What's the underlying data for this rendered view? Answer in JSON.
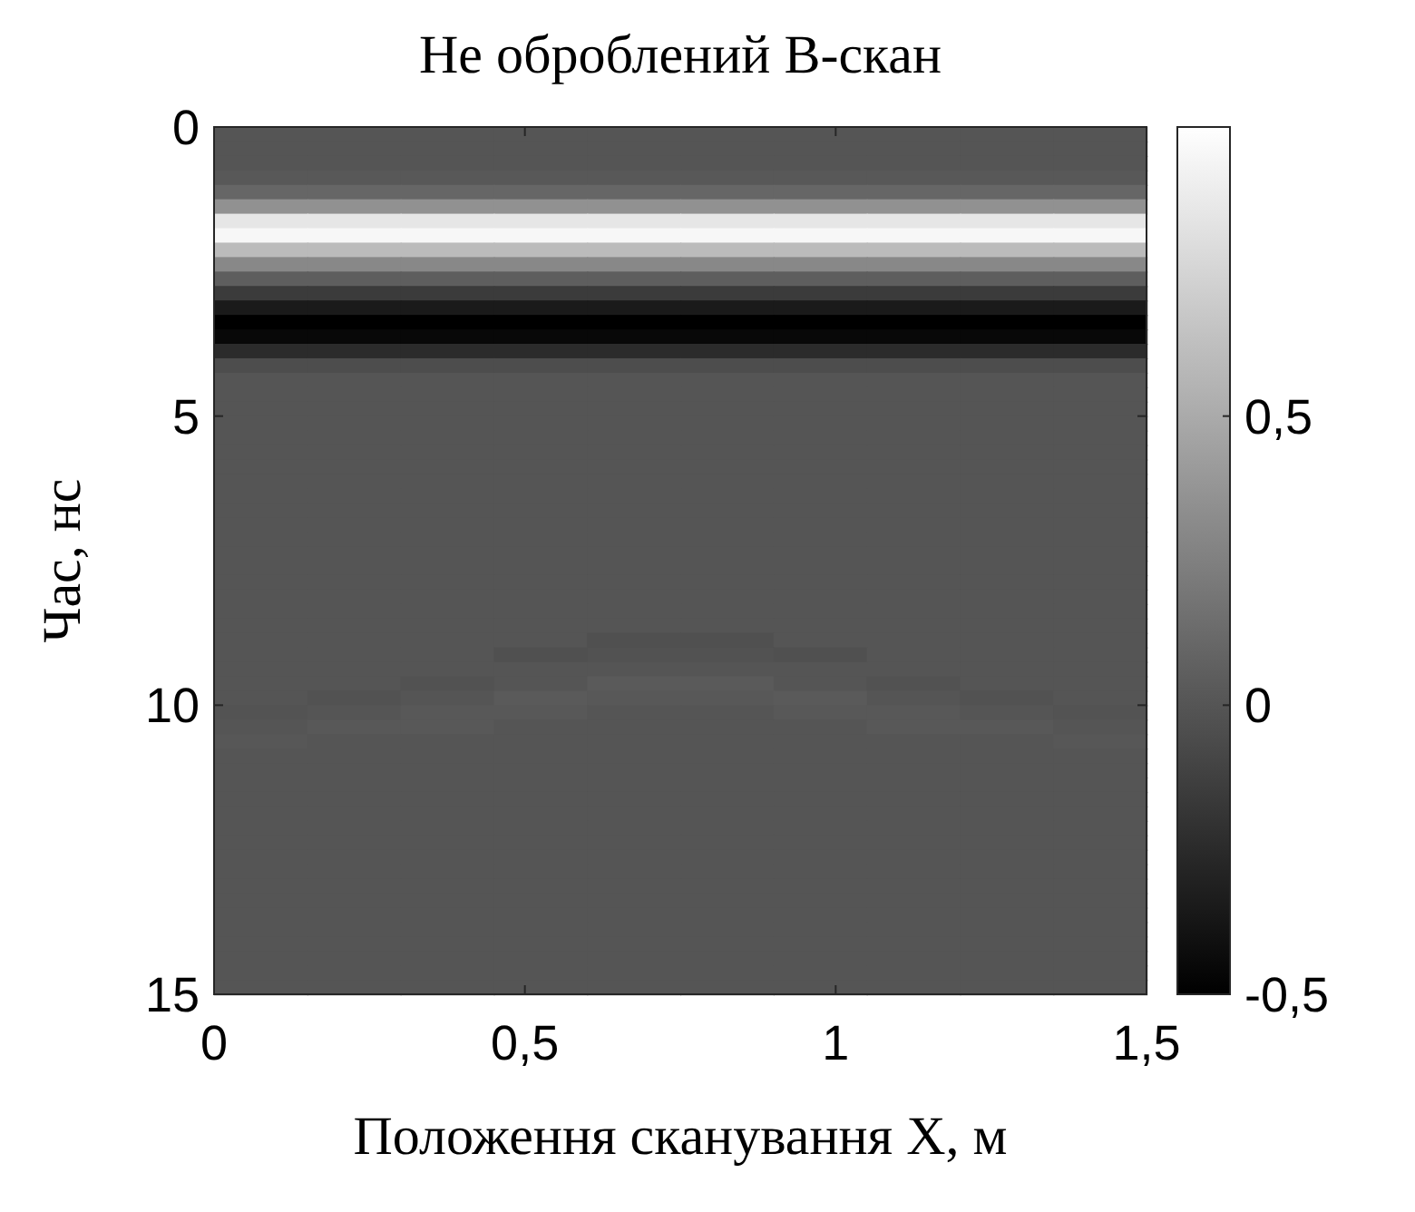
{
  "chart_data": {
    "type": "heatmap",
    "title": "Не оброблений B-скан",
    "xlabel": "Положення сканування X, м",
    "ylabel": "Час, нс",
    "xlim": [
      0,
      1.5
    ],
    "xticks": [
      0,
      {
        "value": 0.5,
        "label": "0,5"
      },
      1,
      {
        "value": 1.5,
        "label": "1,5"
      }
    ],
    "ylim": [
      15,
      0
    ],
    "yticks": [
      0,
      5,
      10,
      15
    ],
    "clim": [
      -0.5,
      1
    ],
    "cticks": [
      {
        "value": -0.5,
        "label": "-0,5"
      },
      0,
      {
        "value": 0.5,
        "label": "0,5"
      }
    ],
    "cells": [
      [
        0,
        0,
        0,
        0,
        0,
        0,
        0,
        0,
        0,
        0
      ],
      [
        0,
        0,
        0,
        0,
        0,
        0,
        0,
        0,
        0,
        0
      ],
      [
        0,
        0,
        0,
        0,
        0,
        0,
        0,
        0,
        0,
        0
      ],
      [
        0.02,
        0.02,
        0.02,
        0.02,
        0.02,
        0.02,
        0.02,
        0.02,
        0.02,
        0.02
      ],
      [
        0.1,
        0.1,
        0.1,
        0.1,
        0.1,
        0.1,
        0.1,
        0.1,
        0.1,
        0.1
      ],
      [
        0.35,
        0.35,
        0.35,
        0.35,
        0.35,
        0.35,
        0.35,
        0.35,
        0.35,
        0.35
      ],
      [
        0.85,
        0.85,
        0.85,
        0.85,
        0.85,
        0.85,
        0.85,
        0.85,
        0.85,
        0.85
      ],
      [
        0.95,
        0.95,
        0.95,
        0.95,
        0.95,
        0.95,
        0.95,
        0.95,
        0.95,
        0.95
      ],
      [
        0.6,
        0.6,
        0.6,
        0.6,
        0.6,
        0.6,
        0.6,
        0.6,
        0.6,
        0.6
      ],
      [
        0.3,
        0.3,
        0.3,
        0.3,
        0.3,
        0.3,
        0.3,
        0.3,
        0.3,
        0.3
      ],
      [
        0.05,
        0.05,
        0.05,
        0.05,
        0.05,
        0.05,
        0.05,
        0.05,
        0.05,
        0.05
      ],
      [
        -0.15,
        -0.15,
        -0.15,
        -0.15,
        -0.15,
        -0.15,
        -0.15,
        -0.15,
        -0.15,
        -0.15
      ],
      [
        -0.35,
        -0.35,
        -0.35,
        -0.35,
        -0.35,
        -0.35,
        -0.35,
        -0.35,
        -0.35,
        -0.35
      ],
      [
        -0.5,
        -0.5,
        -0.5,
        -0.5,
        -0.5,
        -0.5,
        -0.5,
        -0.5,
        -0.5,
        -0.5
      ],
      [
        -0.45,
        -0.45,
        -0.45,
        -0.45,
        -0.45,
        -0.45,
        -0.45,
        -0.45,
        -0.45,
        -0.45
      ],
      [
        -0.25,
        -0.25,
        -0.25,
        -0.25,
        -0.25,
        -0.25,
        -0.25,
        -0.25,
        -0.25,
        -0.25
      ],
      [
        -0.05,
        -0.05,
        -0.05,
        -0.05,
        -0.05,
        -0.05,
        -0.05,
        -0.05,
        -0.05,
        -0.05
      ],
      [
        0,
        0,
        0,
        0,
        0,
        0,
        0,
        0,
        0,
        0
      ],
      [
        0,
        0,
        0,
        0,
        0,
        0,
        0,
        0,
        0,
        0
      ],
      [
        0,
        0,
        0,
        0,
        0,
        0,
        0,
        0,
        0,
        0
      ],
      [
        0,
        0,
        0,
        0,
        0,
        0,
        0,
        0,
        0,
        0
      ],
      [
        0,
        0,
        0,
        0,
        0,
        0,
        0,
        0,
        0,
        0
      ],
      [
        0,
        0,
        0,
        0,
        0,
        0,
        0,
        0,
        0,
        0
      ],
      [
        0,
        0,
        0,
        0,
        0,
        0,
        0,
        0,
        0,
        0
      ],
      [
        0,
        0,
        0,
        0,
        0,
        0,
        0,
        0,
        0,
        0
      ],
      [
        0,
        0,
        0,
        0,
        0,
        0,
        0,
        0,
        0,
        0
      ],
      [
        0,
        0,
        0,
        0,
        0,
        0,
        0,
        0,
        0,
        0
      ],
      [
        0,
        0,
        0,
        0,
        0,
        0,
        0,
        0,
        0,
        0
      ],
      [
        0,
        0,
        0,
        0,
        0,
        0,
        0,
        0,
        0,
        0
      ],
      [
        0,
        0,
        0,
        0,
        0,
        0,
        0,
        0,
        0,
        0
      ],
      [
        0,
        0,
        0,
        0,
        0,
        0,
        0,
        0,
        0,
        0
      ],
      [
        0,
        0,
        0,
        0,
        0,
        0,
        0,
        0,
        0,
        0
      ],
      [
        0,
        0,
        0,
        0,
        0,
        0,
        0,
        0,
        0,
        0
      ],
      [
        0,
        0,
        0,
        0,
        0,
        0,
        0,
        0,
        0,
        0
      ],
      [
        0,
        0,
        0,
        0,
        0,
        0,
        0,
        0,
        0,
        0
      ],
      [
        0,
        0,
        0,
        0,
        -0.03,
        -0.03,
        0,
        0,
        0,
        0
      ],
      [
        0,
        0,
        0,
        -0.03,
        -0.02,
        -0.02,
        -0.03,
        0,
        0,
        0
      ],
      [
        0,
        0,
        0,
        0,
        0,
        0,
        0,
        0,
        0,
        0
      ],
      [
        0,
        0,
        -0.02,
        0,
        0.03,
        0.03,
        0,
        -0.02,
        0,
        0
      ],
      [
        0,
        -0.02,
        0,
        0.03,
        0.02,
        0.02,
        0.03,
        0,
        -0.02,
        0
      ],
      [
        -0.01,
        0,
        0.02,
        0.02,
        0,
        0,
        0.02,
        0.02,
        0,
        -0.01
      ],
      [
        0,
        0.02,
        0.02,
        0,
        0,
        0,
        0,
        0.02,
        0.02,
        0
      ],
      [
        0.01,
        0,
        0,
        0,
        0,
        0,
        0,
        0,
        0,
        0.01
      ],
      [
        0,
        0,
        0,
        0,
        0,
        0,
        0,
        0,
        0,
        0
      ],
      [
        0,
        0,
        0,
        0,
        0,
        0,
        0,
        0,
        0,
        0
      ],
      [
        0,
        0,
        0,
        0,
        0,
        0,
        0,
        0,
        0,
        0
      ],
      [
        0,
        0,
        0,
        0,
        0,
        0,
        0,
        0,
        0,
        0
      ],
      [
        0,
        0,
        0,
        0,
        0,
        0,
        0,
        0,
        0,
        0
      ],
      [
        0,
        0,
        0,
        0,
        0,
        0,
        0,
        0,
        0,
        0
      ],
      [
        0,
        0,
        0,
        0,
        0,
        0,
        0,
        0,
        0,
        0
      ],
      [
        0,
        0,
        0,
        0,
        0,
        0,
        0,
        0,
        0,
        0
      ],
      [
        0,
        0,
        0,
        0,
        0,
        0,
        0,
        0,
        0,
        0
      ],
      [
        0,
        0,
        0,
        0,
        0,
        0,
        0,
        0,
        0,
        0
      ],
      [
        0,
        0,
        0,
        0,
        0,
        0,
        0,
        0,
        0,
        0
      ],
      [
        0,
        0,
        0,
        0,
        0,
        0,
        0,
        0,
        0,
        0
      ],
      [
        0,
        0,
        0,
        0,
        0,
        0,
        0,
        0,
        0,
        0
      ],
      [
        0,
        0,
        0,
        0,
        0,
        0,
        0,
        0,
        0,
        0
      ],
      [
        0,
        0,
        0,
        0,
        0,
        0,
        0,
        0,
        0,
        0
      ],
      [
        0,
        0,
        0,
        0,
        0,
        0,
        0,
        0,
        0,
        0
      ],
      [
        0,
        0,
        0,
        0,
        0,
        0,
        0,
        0,
        0,
        0
      ]
    ]
  }
}
